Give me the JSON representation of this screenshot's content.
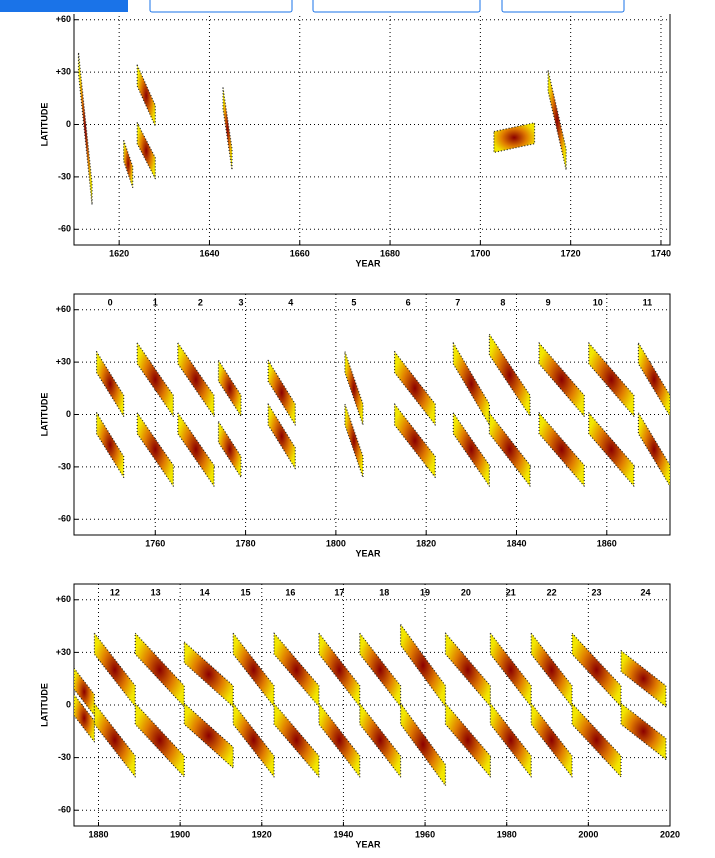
{
  "chart_data": [
    {
      "type": "butterfly",
      "x_label": "YEAR",
      "y_label": "LATITUDE",
      "xlim": [
        1610,
        1742
      ],
      "xticks": [
        1620,
        1640,
        1660,
        1680,
        1700,
        1720,
        1740
      ],
      "ylim": [
        -69,
        69
      ],
      "yticks": [
        {
          "value": 60,
          "label": "+60"
        },
        {
          "value": 30,
          "label": "+30"
        },
        0,
        -30,
        -60
      ],
      "grid": true,
      "colors": [
        "#8b0000",
        "#e07b00",
        "#f2e600"
      ],
      "cycles": [],
      "blobs": [
        {
          "x": [
            1611,
            1614
          ],
          "y": [
            35,
            -40
          ]
        },
        {
          "x": [
            1624,
            1628
          ],
          "y": [
            28,
            5
          ]
        },
        {
          "x": [
            1624,
            1628
          ],
          "y": [
            -5,
            -25
          ]
        },
        {
          "x": [
            1621,
            1623
          ],
          "y": [
            -15,
            -30
          ]
        },
        {
          "x": [
            1643,
            1645
          ],
          "y": [
            15,
            -20
          ]
        },
        {
          "x": [
            1703,
            1712
          ],
          "y": [
            -10,
            -5
          ]
        },
        {
          "x": [
            1715,
            1719
          ],
          "y": [
            25,
            -20
          ]
        }
      ]
    },
    {
      "type": "butterfly",
      "x_label": "YEAR",
      "y_label": "LATITUDE",
      "xlim": [
        1742,
        1874
      ],
      "xticks": [
        1760,
        1780,
        1800,
        1820,
        1840,
        1860
      ],
      "ylim": [
        -69,
        69
      ],
      "yticks": [
        {
          "value": 60,
          "label": "+60"
        },
        {
          "value": 30,
          "label": "+30"
        },
        0,
        -30,
        -60
      ],
      "grid": true,
      "colors": [
        "#8b0000",
        "#e07b00",
        "#f2e600"
      ],
      "cycles": [
        {
          "label": "0",
          "x": 1750
        },
        {
          "label": "1",
          "x": 1760
        },
        {
          "label": "2",
          "x": 1770
        },
        {
          "label": "3",
          "x": 1779
        },
        {
          "label": "4",
          "x": 1790
        },
        {
          "label": "5",
          "x": 1804
        },
        {
          "label": "6",
          "x": 1816
        },
        {
          "label": "7",
          "x": 1827
        },
        {
          "label": "8",
          "x": 1837
        },
        {
          "label": "9",
          "x": 1847
        },
        {
          "label": "10",
          "x": 1858
        },
        {
          "label": "11",
          "x": 1869
        }
      ],
      "blobs": [
        {
          "x": [
            1747,
            1753
          ],
          "y": [
            30,
            5
          ]
        },
        {
          "x": [
            1747,
            1753
          ],
          "y": [
            -5,
            -30
          ]
        },
        {
          "x": [
            1756,
            1764
          ],
          "y": [
            35,
            5
          ]
        },
        {
          "x": [
            1756,
            1764
          ],
          "y": [
            -5,
            -35
          ]
        },
        {
          "x": [
            1765,
            1773
          ],
          "y": [
            35,
            5
          ]
        },
        {
          "x": [
            1765,
            1773
          ],
          "y": [
            -5,
            -35
          ]
        },
        {
          "x": [
            1774,
            1779
          ],
          "y": [
            25,
            5
          ]
        },
        {
          "x": [
            1774,
            1779
          ],
          "y": [
            -10,
            -30
          ]
        },
        {
          "x": [
            1785,
            1791
          ],
          "y": [
            25,
            0
          ]
        },
        {
          "x": [
            1785,
            1791
          ],
          "y": [
            0,
            -25
          ]
        },
        {
          "x": [
            1802,
            1806
          ],
          "y": [
            30,
            0
          ]
        },
        {
          "x": [
            1802,
            1806
          ],
          "y": [
            0,
            -30
          ]
        },
        {
          "x": [
            1813,
            1822
          ],
          "y": [
            30,
            0
          ]
        },
        {
          "x": [
            1813,
            1822
          ],
          "y": [
            0,
            -30
          ]
        },
        {
          "x": [
            1826,
            1834
          ],
          "y": [
            35,
            0
          ]
        },
        {
          "x": [
            1826,
            1834
          ],
          "y": [
            -5,
            -35
          ]
        },
        {
          "x": [
            1834,
            1843
          ],
          "y": [
            40,
            5
          ]
        },
        {
          "x": [
            1834,
            1843
          ],
          "y": [
            -5,
            -35
          ]
        },
        {
          "x": [
            1845,
            1855
          ],
          "y": [
            35,
            5
          ]
        },
        {
          "x": [
            1845,
            1855
          ],
          "y": [
            -5,
            -35
          ]
        },
        {
          "x": [
            1856,
            1866
          ],
          "y": [
            35,
            5
          ]
        },
        {
          "x": [
            1856,
            1866
          ],
          "y": [
            -5,
            -35
          ]
        },
        {
          "x": [
            1867,
            1874
          ],
          "y": [
            35,
            5
          ]
        },
        {
          "x": [
            1867,
            1874
          ],
          "y": [
            -5,
            -35
          ]
        }
      ]
    },
    {
      "type": "butterfly",
      "x_label": "YEAR",
      "y_label": "LATITUDE",
      "xlim": [
        1874,
        2020
      ],
      "xticks": [
        1880,
        1900,
        1920,
        1940,
        1960,
        1980,
        2000,
        2020
      ],
      "ylim": [
        -69,
        69
      ],
      "yticks": [
        {
          "value": 60,
          "label": "+60"
        },
        {
          "value": 30,
          "label": "+30"
        },
        0,
        -30,
        -60
      ],
      "grid": true,
      "colors": [
        "#8b0000",
        "#e07b00",
        "#f2e600"
      ],
      "cycles": [
        {
          "label": "12",
          "x": 1884
        },
        {
          "label": "13",
          "x": 1894
        },
        {
          "label": "14",
          "x": 1906
        },
        {
          "label": "15",
          "x": 1916
        },
        {
          "label": "16",
          "x": 1927
        },
        {
          "label": "17",
          "x": 1939
        },
        {
          "label": "18",
          "x": 1950
        },
        {
          "label": "19",
          "x": 1960
        },
        {
          "label": "20",
          "x": 1970
        },
        {
          "label": "21",
          "x": 1981
        },
        {
          "label": "22",
          "x": 1991
        },
        {
          "label": "23",
          "x": 2002
        },
        {
          "label": "24",
          "x": 2014
        }
      ],
      "blobs": [
        {
          "x": [
            1874,
            1879
          ],
          "y": [
            15,
            0
          ]
        },
        {
          "x": [
            1874,
            1879
          ],
          "y": [
            0,
            -15
          ]
        },
        {
          "x": [
            1879,
            1889
          ],
          "y": [
            35,
            5
          ]
        },
        {
          "x": [
            1879,
            1889
          ],
          "y": [
            -5,
            -35
          ]
        },
        {
          "x": [
            1889,
            1901
          ],
          "y": [
            35,
            5
          ]
        },
        {
          "x": [
            1889,
            1901
          ],
          "y": [
            -5,
            -35
          ]
        },
        {
          "x": [
            1901,
            1913
          ],
          "y": [
            30,
            5
          ]
        },
        {
          "x": [
            1901,
            1913
          ],
          "y": [
            -5,
            -30
          ]
        },
        {
          "x": [
            1913,
            1923
          ],
          "y": [
            35,
            5
          ]
        },
        {
          "x": [
            1913,
            1923
          ],
          "y": [
            -5,
            -35
          ]
        },
        {
          "x": [
            1923,
            1934
          ],
          "y": [
            35,
            5
          ]
        },
        {
          "x": [
            1923,
            1934
          ],
          "y": [
            -5,
            -35
          ]
        },
        {
          "x": [
            1934,
            1944
          ],
          "y": [
            35,
            5
          ]
        },
        {
          "x": [
            1934,
            1944
          ],
          "y": [
            -5,
            -35
          ]
        },
        {
          "x": [
            1944,
            1954
          ],
          "y": [
            35,
            5
          ]
        },
        {
          "x": [
            1944,
            1954
          ],
          "y": [
            -5,
            -35
          ]
        },
        {
          "x": [
            1954,
            1965
          ],
          "y": [
            40,
            5
          ]
        },
        {
          "x": [
            1954,
            1965
          ],
          "y": [
            -5,
            -40
          ]
        },
        {
          "x": [
            1965,
            1976
          ],
          "y": [
            35,
            5
          ]
        },
        {
          "x": [
            1965,
            1976
          ],
          "y": [
            -5,
            -35
          ]
        },
        {
          "x": [
            1976,
            1986
          ],
          "y": [
            35,
            5
          ]
        },
        {
          "x": [
            1976,
            1986
          ],
          "y": [
            -5,
            -35
          ]
        },
        {
          "x": [
            1986,
            1996
          ],
          "y": [
            35,
            5
          ]
        },
        {
          "x": [
            1986,
            1996
          ],
          "y": [
            -5,
            -35
          ]
        },
        {
          "x": [
            1996,
            2008
          ],
          "y": [
            35,
            5
          ]
        },
        {
          "x": [
            1996,
            2008
          ],
          "y": [
            -5,
            -35
          ]
        },
        {
          "x": [
            2008,
            2019
          ],
          "y": [
            25,
            5
          ]
        },
        {
          "x": [
            2008,
            2019
          ],
          "y": [
            -5,
            -25
          ]
        }
      ]
    }
  ]
}
